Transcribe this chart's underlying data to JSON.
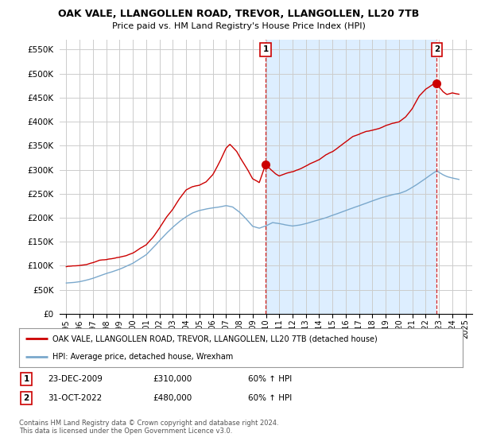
{
  "title": "OAK VALE, LLANGOLLEN ROAD, TREVOR, LLANGOLLEN, LL20 7TB",
  "subtitle": "Price paid vs. HM Land Registry's House Price Index (HPI)",
  "ylim": [
    0,
    570000
  ],
  "yticks": [
    0,
    50000,
    100000,
    150000,
    200000,
    250000,
    300000,
    350000,
    400000,
    450000,
    500000,
    550000
  ],
  "ytick_labels": [
    "£0",
    "£50K",
    "£100K",
    "£150K",
    "£200K",
    "£250K",
    "£300K",
    "£350K",
    "£400K",
    "£450K",
    "£500K",
    "£550K"
  ],
  "red_line_color": "#cc0000",
  "blue_line_color": "#7aa8cc",
  "shade_color": "#ddeeff",
  "marker1_date": 2009.97,
  "marker1_value": 310000,
  "marker1_label": "1",
  "marker2_date": 2022.83,
  "marker2_value": 480000,
  "marker2_label": "2",
  "dashed_line_color": "#cc0000",
  "annotation_box_facecolor": "#ffffff",
  "annotation_box_edgecolor": "#cc0000",
  "annotation_text_color": "#000000",
  "legend_line1": "OAK VALE, LLANGOLLEN ROAD, TREVOR, LLANGOLLEN, LL20 7TB (detached house)",
  "legend_line2": "HPI: Average price, detached house, Wrexham",
  "table_row1": [
    "1",
    "23-DEC-2009",
    "£310,000",
    "60% ↑ HPI"
  ],
  "table_row2": [
    "2",
    "31-OCT-2022",
    "£480,000",
    "60% ↑ HPI"
  ],
  "footer": "Contains HM Land Registry data © Crown copyright and database right 2024.\nThis data is licensed under the Open Government Licence v3.0.",
  "background_color": "#ffffff",
  "plot_bg_color": "#ffffff",
  "grid_color": "#cccccc",
  "xmin": 1994.5,
  "xmax": 2025.5,
  "noise_seed": 42
}
